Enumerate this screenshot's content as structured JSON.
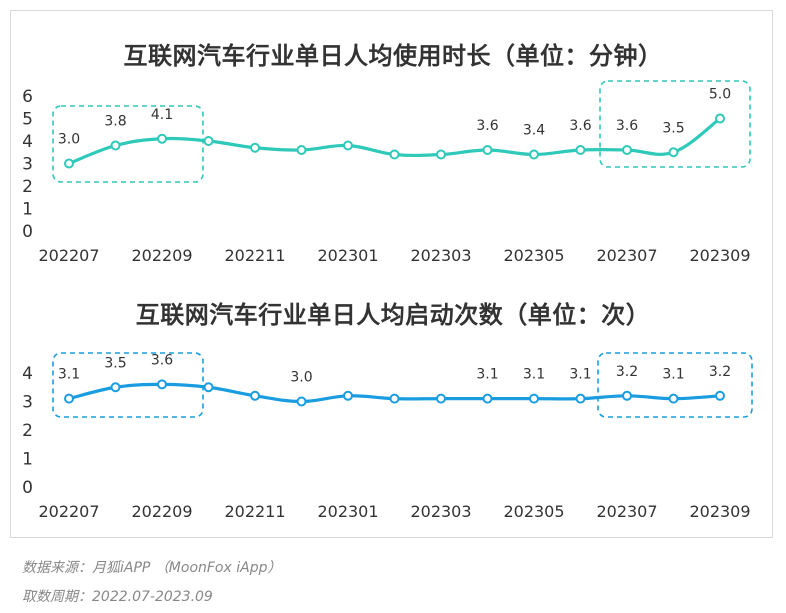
{
  "chart_data": [
    {
      "type": "line",
      "title": "互联网汽车行业单日人均使用时长（单位：分钟）",
      "x": [
        "202207",
        "202208",
        "202209",
        "202210",
        "202211",
        "202212",
        "202301",
        "202302",
        "202303",
        "202304",
        "202305",
        "202306",
        "202307",
        "202308",
        "202309"
      ],
      "values": [
        3.0,
        3.8,
        4.1,
        4.0,
        3.7,
        3.6,
        3.8,
        3.4,
        3.4,
        3.6,
        3.4,
        3.6,
        3.6,
        3.5,
        5.0
      ],
      "data_labels": [
        "3.0",
        "3.8",
        "4.1",
        "",
        "",
        "",
        "",
        "",
        "",
        "3.6",
        "3.4",
        "3.6",
        "3.6",
        "3.5",
        "5.0"
      ],
      "tick_labels": [
        "202207",
        "202209",
        "202211",
        "202301",
        "202303",
        "202305",
        "202307",
        "202309"
      ],
      "y_ticks": [
        "0",
        "1",
        "2",
        "3",
        "4",
        "5",
        "6"
      ],
      "ylim": [
        0,
        6
      ],
      "color": "#2ec9b9",
      "highlight_groups": [
        [
          "202207",
          "202210"
        ],
        [
          "202307",
          "202309"
        ]
      ]
    },
    {
      "type": "line",
      "title": "互联网汽车行业单日人均启动次数（单位：次）",
      "x": [
        "202207",
        "202208",
        "202209",
        "202210",
        "202211",
        "202212",
        "202301",
        "202302",
        "202303",
        "202304",
        "202305",
        "202306",
        "202307",
        "202308",
        "202309"
      ],
      "values": [
        3.1,
        3.5,
        3.6,
        3.5,
        3.2,
        3.0,
        3.2,
        3.1,
        3.1,
        3.1,
        3.1,
        3.1,
        3.2,
        3.1,
        3.2
      ],
      "data_labels": [
        "3.1",
        "3.5",
        "3.6",
        "",
        "",
        "3.0",
        "",
        "",
        "",
        "3.1",
        "3.1",
        "3.1",
        "3.2",
        "3.1",
        "3.2"
      ],
      "tick_labels": [
        "202207",
        "202209",
        "202211",
        "202301",
        "202303",
        "202305",
        "202307",
        "202309"
      ],
      "y_ticks": [
        "0",
        "1",
        "2",
        "3",
        "4"
      ],
      "ylim": [
        0,
        4
      ],
      "color": "#1a9de0",
      "highlight_groups": [
        [
          "202207",
          "202210"
        ],
        [
          "202307",
          "202309"
        ]
      ]
    }
  ],
  "footer": {
    "source": "数据来源：月狐iAPP （MoonFox iApp）",
    "period": "取数周期：2022.07-2023.09"
  }
}
